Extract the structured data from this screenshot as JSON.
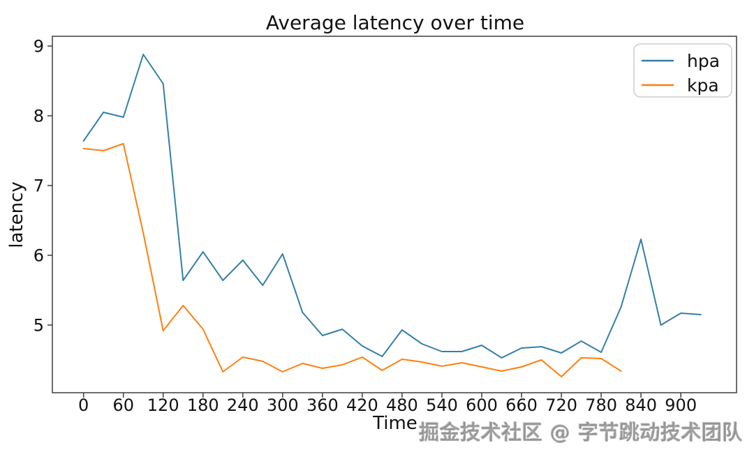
{
  "figure": {
    "title": "Average latency over time",
    "xlabel": "Time",
    "ylabel": "latency"
  },
  "legend": {
    "position": "upper right",
    "items": [
      {
        "label": "hpa",
        "color": "#337fa7"
      },
      {
        "label": "kpa",
        "color": "#ff7f0e"
      }
    ]
  },
  "watermark": "掘金技术社区 @ 字节跳动技术团队",
  "colors": {
    "background": "#ffffff",
    "spine": "#3c3c3c",
    "text": "#111111"
  },
  "chart_data": {
    "type": "line",
    "title": "Average latency over time",
    "xlabel": "Time",
    "ylabel": "latency",
    "grid": false,
    "legend_position": "upper right",
    "xlim": [
      -47,
      984
    ],
    "ylim": [
      4.03,
      9.14
    ],
    "xticks": [
      0,
      60,
      120,
      180,
      240,
      300,
      360,
      420,
      480,
      540,
      600,
      660,
      720,
      780,
      840,
      900
    ],
    "yticks": [
      5,
      6,
      7,
      8,
      9
    ],
    "series": [
      {
        "name": "hpa",
        "color": "#337fa7",
        "x": [
          0,
          30,
          60,
          90,
          120,
          150,
          180,
          210,
          240,
          270,
          300,
          330,
          360,
          390,
          420,
          450,
          480,
          510,
          540,
          570,
          600,
          630,
          660,
          690,
          720,
          750,
          780,
          810,
          840,
          870,
          900,
          930
        ],
        "values": [
          7.64,
          8.05,
          7.98,
          8.88,
          8.46,
          5.64,
          6.05,
          5.64,
          5.93,
          5.57,
          6.02,
          5.18,
          4.85,
          4.94,
          4.7,
          4.55,
          4.93,
          4.73,
          4.62,
          4.62,
          4.71,
          4.53,
          4.67,
          4.69,
          4.6,
          4.77,
          4.61,
          5.26,
          6.23,
          5.0,
          5.17,
          5.15
        ]
      },
      {
        "name": "kpa",
        "color": "#ff7f0e",
        "x": [
          0,
          30,
          60,
          90,
          120,
          150,
          180,
          210,
          240,
          270,
          300,
          330,
          360,
          390,
          420,
          450,
          480,
          510,
          540,
          570,
          600,
          630,
          660,
          690,
          720,
          750,
          780,
          810
        ],
        "values": [
          7.53,
          7.5,
          7.6,
          6.32,
          4.92,
          5.28,
          4.94,
          4.33,
          4.54,
          4.48,
          4.33,
          4.45,
          4.38,
          4.43,
          4.54,
          4.35,
          4.51,
          4.47,
          4.41,
          4.46,
          4.4,
          4.34,
          4.4,
          4.5,
          4.26,
          4.53,
          4.52,
          4.34
        ]
      }
    ]
  }
}
